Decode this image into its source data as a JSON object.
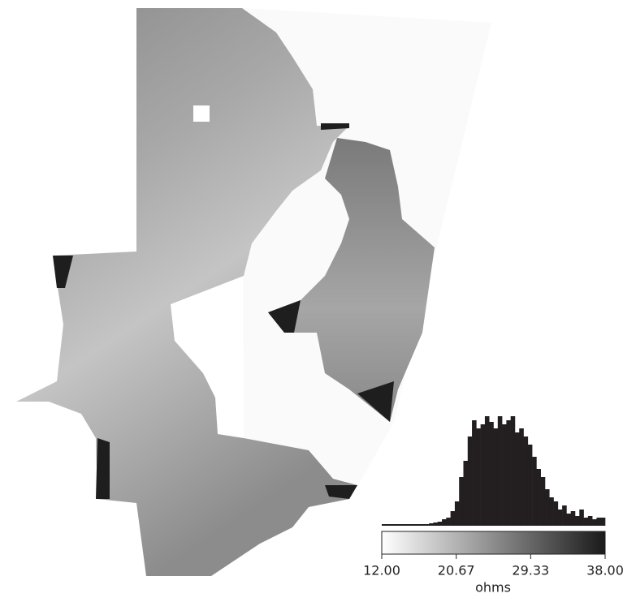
{
  "chart_data": {
    "type": "histogram",
    "xlabel": "ohms",
    "xlim": [
      12,
      38
    ],
    "xticks": [
      {
        "value": 12,
        "label": "12.00"
      },
      {
        "value": 20.67,
        "label": "20.67"
      },
      {
        "value": 29.33,
        "label": "29.33"
      },
      {
        "value": 38,
        "label": "38.00"
      }
    ],
    "bins": [
      12,
      12.5,
      13,
      13.5,
      14,
      14.5,
      15,
      15.5,
      16,
      16.5,
      17,
      17.5,
      18,
      18.5,
      19,
      19.5,
      20,
      20.5,
      21,
      21.5,
      22,
      22.5,
      23,
      23.5,
      24,
      24.5,
      25,
      25.5,
      26,
      26.5,
      27,
      27.5,
      28,
      28.5,
      29,
      29.5,
      30,
      30.5,
      31,
      31.5,
      32,
      32.5,
      33,
      33.5,
      34,
      34.5,
      35,
      35.5,
      36,
      36.5,
      37,
      37.5,
      38
    ],
    "counts": [
      2,
      2,
      2,
      2,
      2,
      2,
      2,
      2,
      2,
      2,
      2,
      3,
      4,
      5,
      8,
      10,
      18,
      30,
      60,
      80,
      110,
      130,
      120,
      125,
      135,
      128,
      120,
      135,
      125,
      130,
      135,
      115,
      120,
      110,
      100,
      85,
      70,
      60,
      45,
      35,
      30,
      20,
      25,
      15,
      18,
      12,
      20,
      10,
      12,
      8,
      10,
      10
    ],
    "color": "#231f20",
    "colormap": [
      "#ffffff",
      "#1a1a1a"
    ]
  }
}
